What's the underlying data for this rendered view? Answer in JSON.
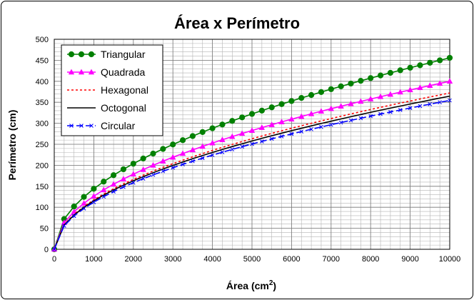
{
  "chart_data": {
    "type": "line",
    "title": "Área x Perímetro",
    "xlabel_main": "Área (cm",
    "xlabel_sup": "2",
    "xlabel_close": ")",
    "ylabel": "Perímetro (cm)",
    "xlim": [
      0,
      10000
    ],
    "ylim": [
      0,
      500
    ],
    "xticks": [
      0,
      1000,
      2000,
      3000,
      4000,
      5000,
      6000,
      7000,
      8000,
      9000,
      10000
    ],
    "yticks": [
      0,
      50,
      100,
      150,
      200,
      250,
      300,
      350,
      400,
      450,
      500
    ],
    "x_minor_step": 250,
    "y_minor_step": 10,
    "grid": true,
    "legend_position": "top-left",
    "x": [
      0,
      250,
      500,
      750,
      1000,
      1250,
      1500,
      1750,
      2000,
      2250,
      2500,
      2750,
      3000,
      3250,
      3500,
      3750,
      4000,
      4250,
      4500,
      4750,
      5000,
      5250,
      5500,
      5750,
      6000,
      6250,
      6500,
      6750,
      7000,
      7250,
      7500,
      7750,
      8000,
      8250,
      8500,
      8750,
      9000,
      9250,
      9500,
      9750,
      10000
    ],
    "series": [
      {
        "name": "Triangular",
        "color": "#008000",
        "style": "solid",
        "marker": "circle",
        "values": [
          0,
          72.1,
          101.9,
          124.8,
          144.1,
          161.1,
          176.5,
          190.6,
          203.8,
          216.2,
          227.9,
          239.0,
          249.6,
          259.8,
          269.6,
          279.1,
          288.2,
          297.1,
          305.7,
          314.1,
          322.3,
          330.2,
          338.0,
          345.6,
          353.0,
          360.3,
          367.4,
          374.4,
          381.3,
          388.0,
          394.7,
          401.2,
          407.6,
          413.9,
          420.1,
          426.2,
          432.3,
          438.2,
          444.1,
          449.9,
          455.9
        ]
      },
      {
        "name": "Quadrada",
        "color": "#ff00ff",
        "style": "solid",
        "marker": "triangle",
        "values": [
          0,
          63.2,
          89.4,
          109.5,
          126.5,
          141.4,
          154.9,
          167.3,
          178.9,
          189.7,
          200.0,
          209.8,
          219.1,
          228.0,
          236.6,
          244.9,
          253.0,
          260.8,
          268.3,
          275.7,
          282.8,
          289.8,
          296.6,
          303.3,
          309.8,
          316.2,
          322.5,
          328.6,
          334.7,
          340.6,
          346.4,
          352.1,
          357.8,
          363.3,
          368.8,
          374.2,
          379.5,
          384.7,
          389.9,
          394.9,
          400.0
        ]
      },
      {
        "name": "Hexagonal",
        "color": "#ff0000",
        "style": "dotted",
        "marker": "none",
        "values": [
          0,
          58.8,
          83.2,
          101.9,
          117.7,
          131.6,
          144.1,
          155.7,
          166.4,
          176.5,
          186.1,
          195.2,
          203.8,
          212.2,
          220.2,
          227.9,
          235.4,
          242.6,
          249.6,
          256.5,
          263.2,
          269.7,
          276.0,
          282.2,
          288.2,
          294.2,
          300.0,
          305.7,
          311.3,
          316.8,
          322.3,
          327.6,
          332.9,
          338.0,
          343.1,
          348.2,
          353.0,
          357.9,
          362.8,
          367.4,
          372.2
        ]
      },
      {
        "name": "Octogonal",
        "color": "#000000",
        "style": "solid",
        "marker": "none",
        "values": [
          0,
          57.6,
          81.5,
          99.8,
          115.3,
          128.9,
          141.2,
          152.5,
          163.0,
          172.9,
          182.3,
          191.2,
          199.7,
          207.8,
          215.7,
          223.3,
          230.6,
          237.7,
          244.6,
          251.3,
          257.8,
          264.2,
          270.4,
          276.5,
          282.4,
          288.2,
          293.9,
          299.5,
          305.0,
          310.4,
          315.7,
          320.9,
          326.1,
          331.2,
          336.1,
          341.0,
          345.9,
          350.6,
          355.3,
          360.0,
          364.6
        ]
      },
      {
        "name": "Circular",
        "color": "#0000ff",
        "style": "dashed",
        "marker": "x",
        "values": [
          0,
          56.1,
          79.3,
          97.1,
          112.1,
          125.3,
          137.3,
          148.3,
          158.5,
          168.2,
          177.2,
          185.9,
          194.2,
          202.1,
          209.7,
          217.1,
          224.2,
          231.1,
          237.8,
          244.3,
          250.7,
          256.8,
          262.9,
          268.8,
          274.6,
          280.3,
          285.8,
          291.2,
          296.6,
          301.8,
          307.0,
          312.1,
          317.1,
          322.0,
          326.8,
          331.6,
          336.3,
          341.0,
          345.5,
          350.0,
          354.5
        ]
      }
    ]
  }
}
